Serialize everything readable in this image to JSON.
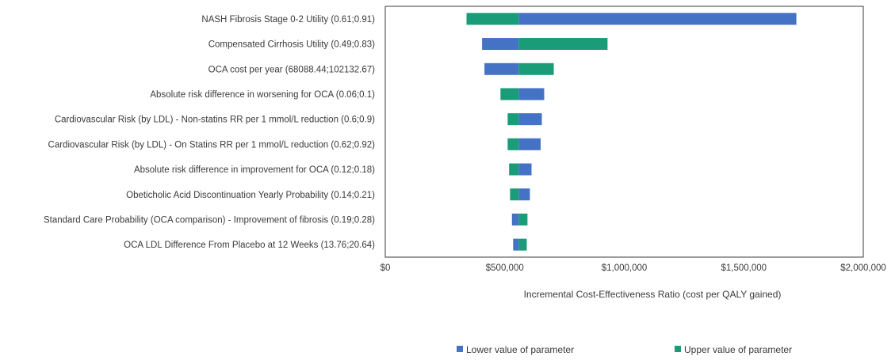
{
  "chart_data": {
    "type": "tornado",
    "baseline": 558000,
    "xlim": [
      0,
      2000000
    ],
    "xticks": [
      0,
      500000,
      1000000,
      1500000,
      2000000
    ],
    "xtick_labels": [
      "$0",
      "$500,000",
      "$1,000,000",
      "$1,500,000",
      "$2,000,000"
    ],
    "xlabel": "Incremental Cost-Effectiveness Ratio (cost per QALY gained)",
    "colors": {
      "lower": "#4472c4",
      "upper": "#1a9c78"
    },
    "legend": {
      "placement": "bottom",
      "lower_label": "Lower value of parameter",
      "upper_label": "Upper value of parameter"
    },
    "categories": [
      "NASH Fibrosis Stage 0-2 Utility (0.61;0.91)",
      "Compensated Cirrhosis Utility (0.49;0.83)",
      "OCA cost per year (68088.44;102132.67)",
      "Absolute risk difference in worsening for OCA (0.06;0.1)",
      "Cardiovascular Risk (by LDL) - Non-statins RR per 1 mmol/L reduction (0.6;0.9)",
      "Cardiovascular Risk (by LDL) - On Statins RR per 1 mmol/L reduction (0.62;0.92)",
      "Absolute risk difference in improvement for OCA (0.12;0.18)",
      "Obeticholic Acid Discontinuation Yearly Probability (0.14;0.21)",
      "Standard Care Probability (OCA comparison) - Improvement of fibrosis (0.19;0.28)",
      "OCA LDL Difference From Placebo at 12 Weeks (13.76;20.64)"
    ],
    "series": [
      {
        "name": "Lower value of parameter",
        "values": [
          1720000,
          405000,
          415000,
          665000,
          655000,
          650000,
          612000,
          605000,
          530000,
          535000
        ]
      },
      {
        "name": "Upper value of parameter",
        "values": [
          340000,
          930000,
          705000,
          482000,
          512000,
          512000,
          518000,
          522000,
          595000,
          592000
        ]
      }
    ]
  }
}
